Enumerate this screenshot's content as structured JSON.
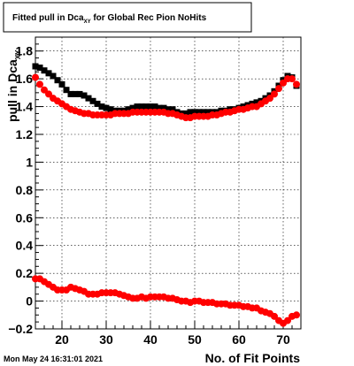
{
  "footer": {
    "timestamp": "Mon May 24 16:31:01 2021"
  },
  "chart_data": {
    "type": "scatter",
    "title": "Fitted pull in Dca",
    "title_sub": "XY",
    "title_rest": " for Global Rec Pion NoHits",
    "xlabel": "No. of Fit Points",
    "ylabel": "pull in Dca",
    "ylabel_sub": "XY",
    "xlim": [
      14,
      74
    ],
    "ylim": [
      -0.2,
      1.9
    ],
    "x_ticks": [
      20,
      30,
      40,
      50,
      60,
      70
    ],
    "x_tick_labels": [
      "20",
      "30",
      "40",
      "50",
      "60",
      "70"
    ],
    "y_ticks": [
      -0.2,
      0,
      0.2,
      0.4,
      0.6,
      0.8,
      1,
      1.2,
      1.4,
      1.6,
      1.8
    ],
    "y_tick_labels": [
      "−0.2",
      "0",
      "0.2",
      "0.4",
      "0.6",
      "0.8",
      "1",
      "1.2",
      "1.4",
      "1.6",
      "1.8"
    ],
    "grid": true,
    "colors": {
      "black_series": "#000000",
      "red_series": "#ff0000"
    },
    "series": [
      {
        "marker": "square",
        "color": "#000000",
        "x": [
          14,
          15,
          16,
          17,
          18,
          19,
          20,
          21,
          22,
          23,
          24,
          25,
          26,
          27,
          28,
          29,
          30,
          31,
          32,
          33,
          34,
          35,
          36,
          37,
          38,
          39,
          40,
          41,
          42,
          43,
          44,
          45,
          46,
          47,
          48,
          49,
          50,
          51,
          52,
          53,
          54,
          55,
          56,
          57,
          58,
          59,
          60,
          61,
          62,
          63,
          64,
          65,
          66,
          67,
          68,
          69,
          70,
          71,
          72,
          73
        ],
        "y": [
          1.69,
          1.68,
          1.66,
          1.64,
          1.62,
          1.59,
          1.56,
          1.52,
          1.49,
          1.49,
          1.49,
          1.48,
          1.46,
          1.44,
          1.42,
          1.4,
          1.39,
          1.38,
          1.37,
          1.37,
          1.37,
          1.38,
          1.39,
          1.4,
          1.4,
          1.4,
          1.4,
          1.4,
          1.39,
          1.39,
          1.38,
          1.38,
          1.36,
          1.35,
          1.35,
          1.36,
          1.36,
          1.36,
          1.36,
          1.36,
          1.36,
          1.36,
          1.37,
          1.37,
          1.38,
          1.38,
          1.39,
          1.4,
          1.41,
          1.42,
          1.43,
          1.44,
          1.46,
          1.48,
          1.51,
          1.55,
          1.59,
          1.62,
          1.61,
          1.55
        ]
      },
      {
        "marker": "circle",
        "color": "#ff0000",
        "x": [
          14,
          15,
          16,
          17,
          18,
          19,
          20,
          21,
          22,
          23,
          24,
          25,
          26,
          27,
          28,
          29,
          30,
          31,
          32,
          33,
          34,
          35,
          36,
          37,
          38,
          39,
          40,
          41,
          42,
          43,
          44,
          45,
          46,
          47,
          48,
          49,
          50,
          51,
          52,
          53,
          54,
          55,
          56,
          57,
          58,
          59,
          60,
          61,
          62,
          63,
          64,
          65,
          66,
          67,
          68,
          69,
          70,
          71,
          72,
          73
        ],
        "y": [
          1.61,
          1.56,
          1.52,
          1.49,
          1.46,
          1.44,
          1.42,
          1.4,
          1.38,
          1.37,
          1.36,
          1.35,
          1.35,
          1.34,
          1.34,
          1.34,
          1.34,
          1.34,
          1.35,
          1.35,
          1.35,
          1.35,
          1.36,
          1.36,
          1.36,
          1.36,
          1.36,
          1.36,
          1.36,
          1.36,
          1.35,
          1.35,
          1.34,
          1.33,
          1.32,
          1.32,
          1.33,
          1.33,
          1.33,
          1.33,
          1.34,
          1.34,
          1.35,
          1.36,
          1.36,
          1.37,
          1.38,
          1.38,
          1.39,
          1.4,
          1.4,
          1.42,
          1.44,
          1.46,
          1.49,
          1.53,
          1.57,
          1.6,
          1.6,
          1.56
        ]
      },
      {
        "marker": "circle",
        "color": "#ff0000",
        "x": [
          14,
          15,
          16,
          17,
          18,
          19,
          20,
          21,
          22,
          23,
          24,
          25,
          26,
          27,
          28,
          29,
          30,
          31,
          32,
          33,
          34,
          35,
          36,
          37,
          38,
          39,
          40,
          41,
          42,
          43,
          44,
          45,
          46,
          47,
          48,
          49,
          50,
          51,
          52,
          53,
          54,
          55,
          56,
          57,
          58,
          59,
          60,
          61,
          62,
          63,
          64,
          65,
          66,
          67,
          68,
          69,
          70,
          71,
          72,
          73
        ],
        "y": [
          0.16,
          0.16,
          0.14,
          0.12,
          0.1,
          0.08,
          0.08,
          0.08,
          0.1,
          0.09,
          0.08,
          0.07,
          0.05,
          0.05,
          0.05,
          0.06,
          0.06,
          0.06,
          0.06,
          0.05,
          0.04,
          0.03,
          0.02,
          0.02,
          0.03,
          0.02,
          0.03,
          0.03,
          0.03,
          0.03,
          0.02,
          0.02,
          0.01,
          0.0,
          0.0,
          -0.01,
          0.0,
          0.0,
          -0.01,
          -0.01,
          -0.01,
          -0.02,
          -0.02,
          -0.02,
          -0.03,
          -0.03,
          -0.03,
          -0.04,
          -0.04,
          -0.05,
          -0.05,
          -0.07,
          -0.08,
          -0.09,
          -0.11,
          -0.14,
          -0.16,
          -0.14,
          -0.11,
          -0.1
        ]
      }
    ]
  }
}
